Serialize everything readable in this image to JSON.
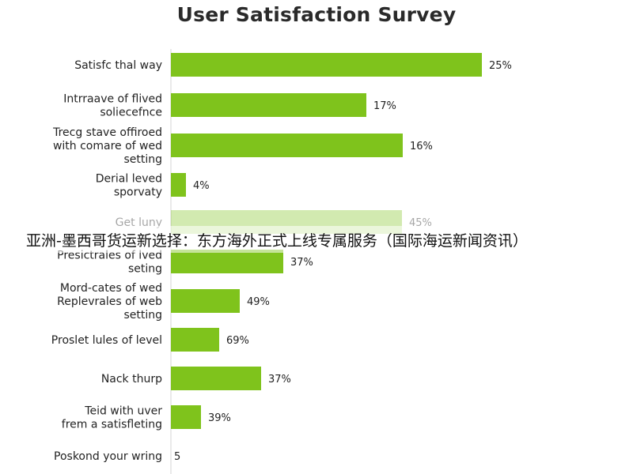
{
  "chart_data": {
    "type": "bar",
    "orientation": "horizontal",
    "title": "User Satisfaction Survey",
    "xlabel": "",
    "ylabel": "",
    "grid": false,
    "bar_color": "#7fc31c",
    "categories": [
      "Satisfc thal way",
      "Intrraave of flived soliecefnce",
      "Trecg stave offiroed with comare of wed setting",
      "Derial leved sporvaty",
      "Get luny",
      "Presictrales of lved seting",
      "Mord-cates of wed Replevrales of web setting",
      "Proslet lules of level",
      "Nack thurp",
      "Teid with uver frem a satisfleting",
      "Poskond your wring"
    ],
    "values": [
      25,
      17,
      16,
      4,
      45,
      37,
      49,
      69,
      37,
      39,
      5
    ],
    "data_labels": [
      "25%",
      "17%",
      "16%",
      "4%",
      "45%",
      "37%",
      "49%",
      "69%",
      "37%",
      "39%",
      "5"
    ]
  },
  "overlay_text": "亚洲-墨西哥货运新选择：东方海外正式上线专属服务（国际海运新闻资讯）"
}
